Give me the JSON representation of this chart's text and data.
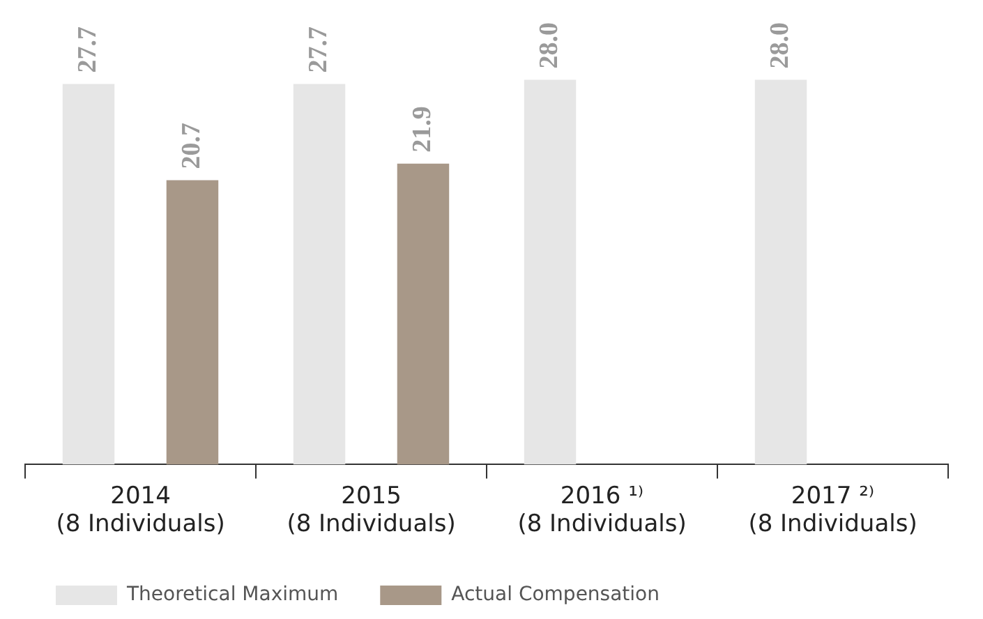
{
  "chart_data": {
    "type": "bar",
    "categories": [
      "2014\n(8 Individuals)",
      "2015\n(8 Individuals)",
      "2016 ¹⁾\n(8 Individuals)",
      "2017 ²⁾\n(8 Individuals)"
    ],
    "series": [
      {
        "name": "Theoretical Maximum",
        "color": "#e6e6e6",
        "values": [
          27.7,
          27.7,
          28.0,
          28.0
        ],
        "value_labels": [
          "27.7",
          "27.7",
          "28.0",
          "28.0"
        ]
      },
      {
        "name": "Actual Compensation",
        "color": "#a89888",
        "values": [
          20.7,
          21.9,
          null,
          null
        ],
        "value_labels": [
          "20.7",
          "21.9",
          null,
          null
        ]
      }
    ],
    "relative": false,
    "grid": false,
    "legend": "bottom left"
  }
}
